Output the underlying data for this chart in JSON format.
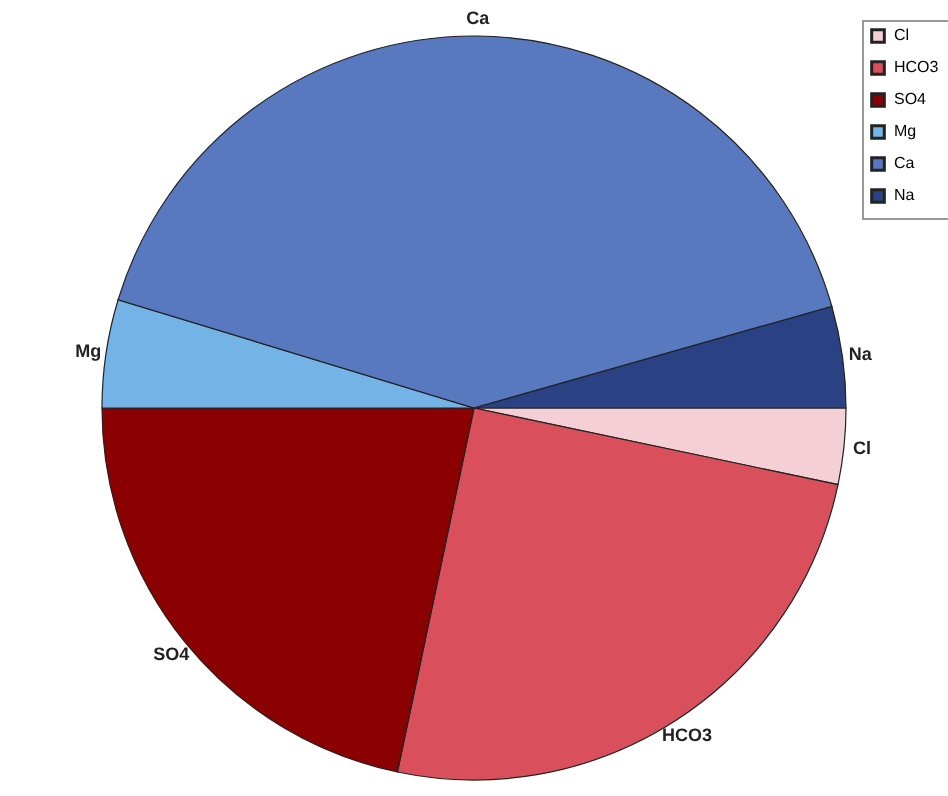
{
  "chart_data": {
    "type": "pie",
    "categories": [
      "Cl",
      "HCO3",
      "SO4",
      "Mg",
      "Ca",
      "Na"
    ],
    "values": [
      3.3,
      25,
      21.7,
      4.7,
      40.9,
      4.4
    ],
    "colors": [
      "#f4cfd5",
      "#d9505c",
      "#8b0000",
      "#74b3e6",
      "#5878bf",
      "#2a4283"
    ],
    "legend": "top right"
  }
}
